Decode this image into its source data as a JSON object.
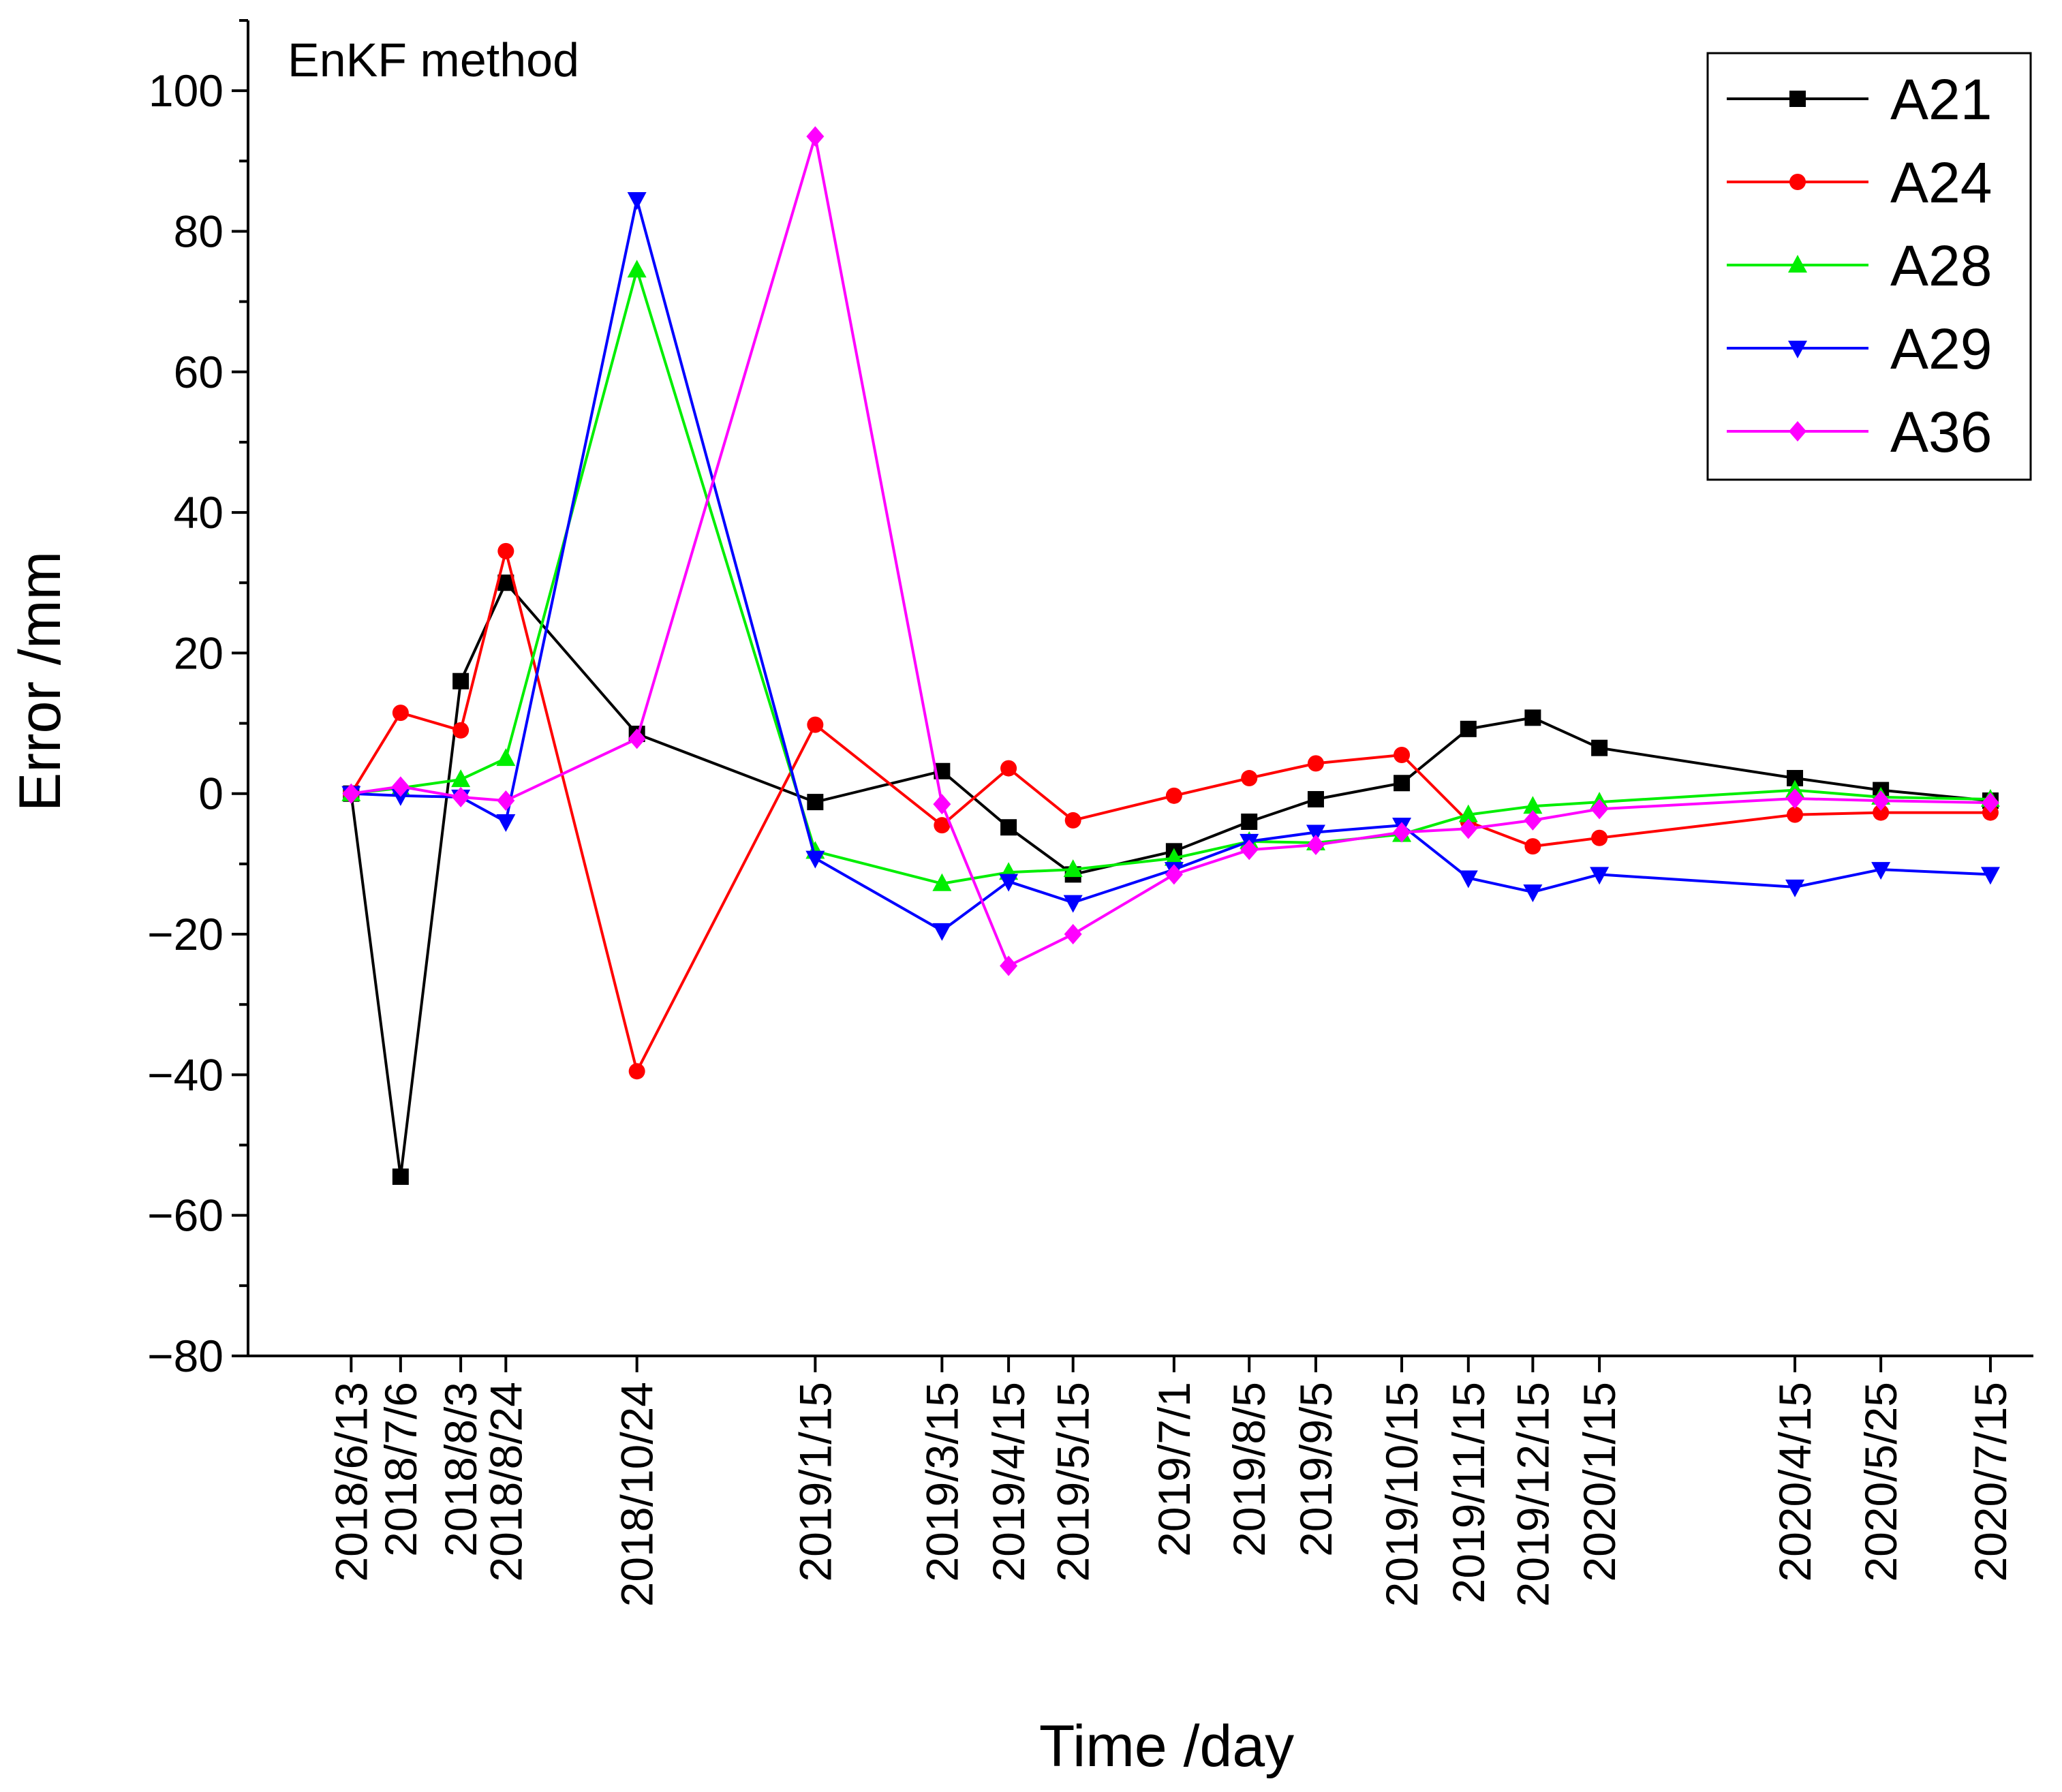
{
  "chart_data": {
    "type": "line",
    "annotation": "EnKF method",
    "xlabel": "Time /day",
    "ylabel": "Error /mm",
    "ylim": [
      -80,
      110
    ],
    "yticks": [
      -80,
      -60,
      -40,
      -20,
      0,
      20,
      40,
      60,
      80,
      100
    ],
    "ytick_labels": [
      "−80",
      "−60",
      "−40",
      "−20",
      "0",
      "20",
      "40",
      "60",
      "80",
      "100"
    ],
    "grid": false,
    "legend_position": "top-right",
    "categories": [
      "2018/6/13",
      "2018/7/6",
      "2018/8/3",
      "2018/8/24",
      "2018/10/24",
      "2019/1/15",
      "2019/3/15",
      "2019/4/15",
      "2019/5/15",
      "2019/7/1",
      "2019/8/5",
      "2019/9/5",
      "2019/10/15",
      "2019/11/15",
      "2019/12/15",
      "2020/1/15",
      "2020/4/15",
      "2020/5/25",
      "2020/7/15"
    ],
    "x_day": [
      0,
      23,
      51,
      72,
      133,
      216,
      275,
      306,
      336,
      383,
      418,
      449,
      489,
      520,
      550,
      581,
      672,
      712,
      763
    ],
    "xlim_day": [
      -48,
      783
    ],
    "series": [
      {
        "name": "A21",
        "color": "#000000",
        "marker": "square",
        "values": [
          0,
          -54.5,
          16,
          30,
          8.5,
          -1.2,
          3.2,
          -4.8,
          -11.5,
          -8.2,
          -4,
          -0.8,
          1.5,
          9.2,
          10.8,
          6.5,
          2.2,
          0.5,
          -1
        ]
      },
      {
        "name": "A24",
        "color": "#ff0000",
        "marker": "circle",
        "values": [
          0,
          11.5,
          9,
          34.5,
          -39.5,
          9.8,
          -4.5,
          3.6,
          -3.8,
          -0.3,
          2.2,
          4.3,
          5.5,
          -4,
          -7.5,
          -6.3,
          -3,
          -2.7,
          -2.7
        ]
      },
      {
        "name": "A28",
        "color": "#00ee00",
        "marker": "triangle-up",
        "values": [
          0,
          0.8,
          2,
          5,
          74.5,
          -8.2,
          -12.8,
          -11.2,
          -10.8,
          -9.2,
          -6.8,
          -7,
          -5.8,
          -3,
          -1.8,
          -1.2,
          0.5,
          -0.5,
          -0.8
        ]
      },
      {
        "name": "A29",
        "color": "#0000ff",
        "marker": "triangle-down",
        "values": [
          0,
          -0.3,
          -0.5,
          -4,
          84.5,
          -9.2,
          -19.5,
          -12.5,
          -15.5,
          -10.8,
          -6.8,
          -5.5,
          -4.5,
          -12,
          -14,
          -11.5,
          -13.3,
          -10.8,
          -11.5
        ]
      },
      {
        "name": "A36",
        "color": "#ff00ff",
        "marker": "diamond",
        "values": [
          0,
          1,
          -0.5,
          -1,
          7.8,
          93.5,
          -1.5,
          -24.5,
          -20,
          -11.5,
          -8,
          -7.3,
          -5.5,
          -5,
          -3.8,
          -2.2,
          -0.7,
          -1,
          -1.3
        ]
      }
    ]
  }
}
